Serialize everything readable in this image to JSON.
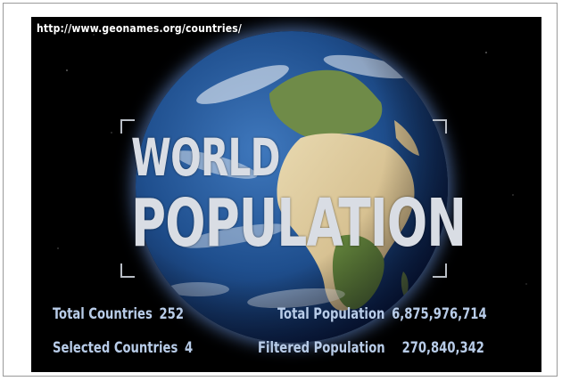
{
  "url": "http://www.geonames.org/countries/",
  "title": {
    "line1": "WORLD",
    "line2": "POPULATION"
  },
  "stats": {
    "total_countries_label": "Total Countries",
    "total_countries_value": "252",
    "selected_countries_label": "Selected Countries",
    "selected_countries_value": "4",
    "total_population_label": "Total Population",
    "total_population_value": "6,875,976,714",
    "filtered_population_label": "Filtered Population",
    "filtered_population_value": "270,840,342"
  },
  "colors": {
    "background": "#000000",
    "stat_text": "#b8cce8",
    "title_text": "#d9dde4",
    "ocean": "#1e4f8f",
    "land_green": "#6b8a3f",
    "land_desert": "#d8c59a"
  },
  "icons": [
    "globe-image"
  ]
}
